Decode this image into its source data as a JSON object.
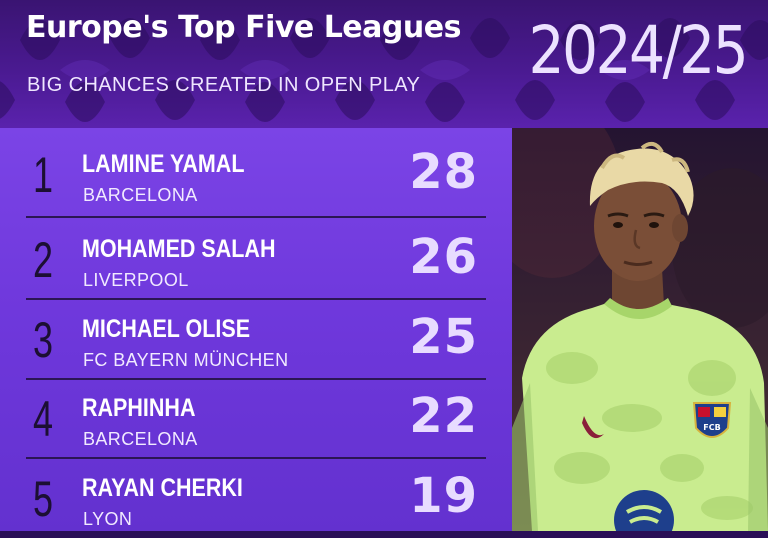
{
  "header": {
    "title": "Europe's Top Five Leagues",
    "subtitle": "BIG CHANCES CREATED IN OPEN PLAY",
    "season": "2024/25"
  },
  "players": [
    {
      "rank": "1",
      "name": "LAMINE YAMAL",
      "club": "BARCELONA",
      "value": "28"
    },
    {
      "rank": "2",
      "name": "MOHAMED SALAH",
      "club": "LIVERPOOL",
      "value": "26"
    },
    {
      "rank": "3",
      "name": "MICHAEL OLISE",
      "club": "FC BAYERN MÜNCHEN",
      "value": "25"
    },
    {
      "rank": "4",
      "name": "RAPHINHA",
      "club": "BARCELONA",
      "value": "22"
    },
    {
      "rank": "5",
      "name": "RAYAN CHERKI",
      "club": "LYON",
      "value": "19"
    }
  ],
  "photo": {
    "subject": "player-photo",
    "crest_letters": "FCB"
  },
  "colors": {
    "header_bg": "#4a1a91",
    "list_bg": "#6f38dc",
    "value_color": "#e8dcff",
    "rank_color": "#1c0f33",
    "shirt": "#c9ec8f"
  }
}
